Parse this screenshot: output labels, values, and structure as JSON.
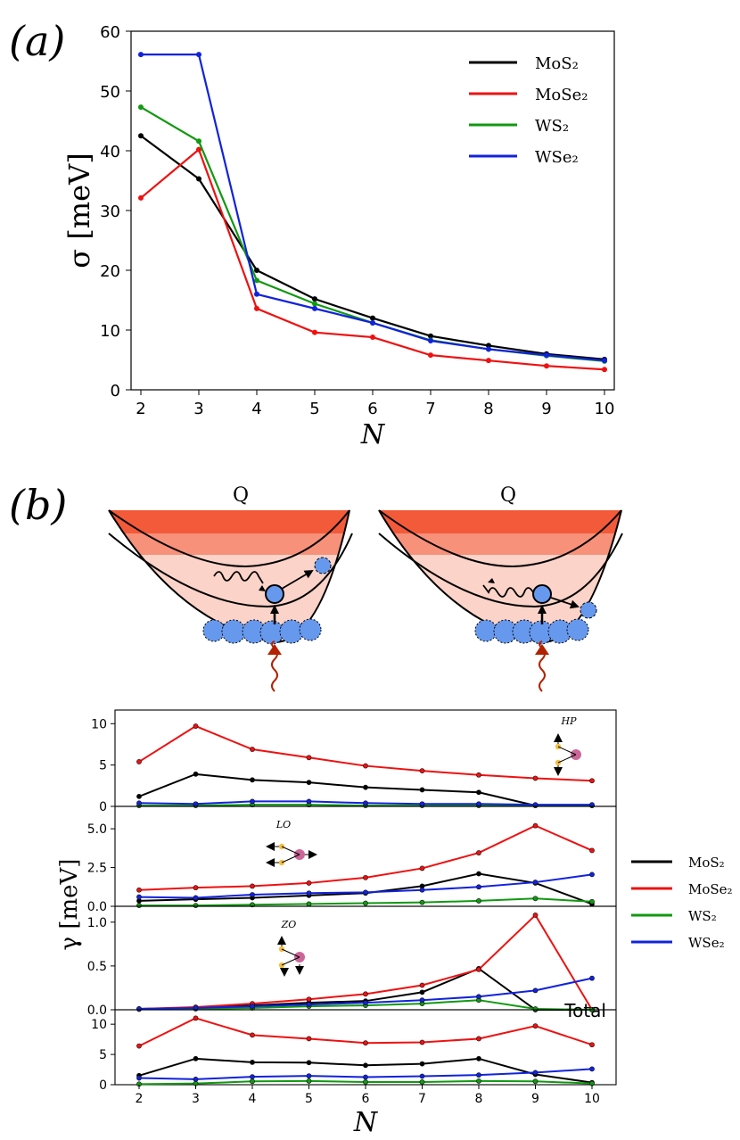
{
  "panel_labels": {
    "a": "(a)",
    "b": "(b)"
  },
  "colors": {
    "MoS2": "#000000",
    "MoSe2": "#ee1111",
    "WS2": "#119911",
    "WSe2": "#1122dd"
  },
  "diagram": {
    "left_title": "Q",
    "right_title": "Q"
  },
  "chart_data": [
    {
      "id": "a",
      "type": "line",
      "title": "",
      "xlabel": "N",
      "ylabel": "σ [meV]",
      "xlim": [
        2,
        10
      ],
      "ylim": [
        0,
        60
      ],
      "xticks": [
        "2",
        "3",
        "4",
        "5",
        "6",
        "7",
        "8",
        "9",
        "10"
      ],
      "yticks": [
        "0",
        "10",
        "20",
        "30",
        "40",
        "50",
        "60"
      ],
      "legend_position": "top-right",
      "x": [
        2,
        3,
        4,
        5,
        6,
        7,
        8,
        9,
        10
      ],
      "series": [
        {
          "name": "MoS₂",
          "key": "MoS2",
          "values": [
            42.5,
            35.3,
            20.0,
            15.2,
            12.0,
            9.0,
            7.4,
            6.0,
            5.1
          ]
        },
        {
          "name": "MoSe₂",
          "key": "MoSe2",
          "values": [
            32.1,
            40.2,
            13.6,
            9.6,
            8.8,
            5.8,
            4.9,
            4.0,
            3.4
          ]
        },
        {
          "name": "WS₂",
          "key": "WS2",
          "values": [
            47.3,
            41.6,
            18.3,
            14.4,
            11.2,
            8.3,
            6.8,
            5.7,
            4.8
          ]
        },
        {
          "name": "WSe₂",
          "key": "WSe2",
          "values": [
            56.1,
            56.1,
            16.0,
            13.6,
            11.2,
            8.2,
            6.8,
            5.8,
            4.9
          ]
        }
      ]
    },
    {
      "id": "b-hp",
      "type": "line",
      "annotation": "HP",
      "xlim": [
        2,
        10
      ],
      "ylim": [
        0,
        11
      ],
      "yticks": [
        "0",
        "5",
        "10"
      ],
      "ytick_values": [
        0,
        5,
        10
      ],
      "x": [
        2,
        3,
        4,
        5,
        6,
        7,
        8,
        9,
        10
      ],
      "series": [
        {
          "key": "MoS2",
          "values": [
            1.2,
            3.9,
            3.2,
            2.9,
            2.3,
            2.0,
            1.7,
            0.1,
            0.1
          ]
        },
        {
          "key": "MoSe2",
          "values": [
            5.4,
            9.7,
            6.9,
            5.9,
            4.9,
            4.3,
            3.8,
            3.4,
            3.1
          ]
        },
        {
          "key": "WS2",
          "values": [
            0.1,
            0.1,
            0.2,
            0.2,
            0.1,
            0.1,
            0.1,
            0.1,
            0.1
          ]
        },
        {
          "key": "WSe2",
          "values": [
            0.4,
            0.3,
            0.6,
            0.6,
            0.4,
            0.3,
            0.3,
            0.2,
            0.2
          ]
        }
      ]
    },
    {
      "id": "b-lo",
      "type": "line",
      "annotation": "LO",
      "xlim": [
        2,
        10
      ],
      "ylim": [
        0,
        6.1
      ],
      "yticks": [
        "0.0",
        "2.5",
        "5.0"
      ],
      "ytick_values": [
        0,
        2.5,
        5.0
      ],
      "x": [
        2,
        3,
        4,
        5,
        6,
        7,
        8,
        9,
        10
      ],
      "series": [
        {
          "key": "MoS2",
          "values": [
            0.35,
            0.45,
            0.55,
            0.7,
            0.85,
            1.3,
            2.1,
            1.5,
            0.15
          ]
        },
        {
          "key": "MoSe2",
          "values": [
            1.05,
            1.2,
            1.3,
            1.5,
            1.85,
            2.45,
            3.45,
            5.2,
            3.6
          ]
        },
        {
          "key": "WS2",
          "values": [
            0.05,
            0.05,
            0.1,
            0.15,
            0.2,
            0.25,
            0.35,
            0.5,
            0.3
          ]
        },
        {
          "key": "WSe2",
          "values": [
            0.6,
            0.55,
            0.75,
            0.85,
            0.9,
            1.05,
            1.25,
            1.55,
            2.05
          ]
        }
      ]
    },
    {
      "id": "b-zo",
      "type": "line",
      "annotation": "ZO",
      "ylabel": "γ [meV]",
      "xlim": [
        2,
        10
      ],
      "ylim": [
        0,
        1.12
      ],
      "yticks": [
        "0.0",
        "0.5",
        "1.0"
      ],
      "ytick_values": [
        0,
        0.5,
        1.0
      ],
      "x": [
        2,
        3,
        4,
        5,
        6,
        7,
        8,
        9,
        10
      ],
      "series": [
        {
          "key": "MoS2",
          "values": [
            0.01,
            0.02,
            0.05,
            0.08,
            0.1,
            0.2,
            0.47,
            0.0,
            0.0
          ]
        },
        {
          "key": "MoSe2",
          "values": [
            0.01,
            0.03,
            0.07,
            0.12,
            0.18,
            0.28,
            0.46,
            1.08,
            0.0
          ]
        },
        {
          "key": "WS2",
          "values": [
            0.005,
            0.01,
            0.02,
            0.04,
            0.05,
            0.07,
            0.11,
            0.01,
            0.0
          ]
        },
        {
          "key": "WSe2",
          "values": [
            0.01,
            0.02,
            0.04,
            0.06,
            0.08,
            0.11,
            0.15,
            0.22,
            0.36
          ]
        }
      ]
    },
    {
      "id": "b-total",
      "type": "line",
      "annotation": "Total",
      "xlabel": "N",
      "xlim": [
        2,
        10
      ],
      "ylim": [
        0,
        11.5
      ],
      "xticks": [
        "2",
        "3",
        "4",
        "5",
        "6",
        "7",
        "8",
        "9",
        "10"
      ],
      "yticks": [
        "0",
        "5",
        "10"
      ],
      "ytick_values": [
        0,
        5,
        10
      ],
      "x": [
        2,
        3,
        4,
        5,
        6,
        7,
        8,
        9,
        10
      ],
      "series": [
        {
          "key": "MoS2",
          "values": [
            1.5,
            4.3,
            3.7,
            3.65,
            3.2,
            3.45,
            4.3,
            1.7,
            0.35
          ]
        },
        {
          "key": "MoSe2",
          "values": [
            6.4,
            11.0,
            8.2,
            7.6,
            6.9,
            7.0,
            7.6,
            9.7,
            6.6
          ]
        },
        {
          "key": "WS2",
          "values": [
            0.1,
            0.2,
            0.55,
            0.6,
            0.45,
            0.45,
            0.6,
            0.55,
            0.2
          ]
        },
        {
          "key": "WSe2",
          "values": [
            1.1,
            0.9,
            1.3,
            1.45,
            1.25,
            1.4,
            1.6,
            2.0,
            2.6
          ]
        }
      ],
      "legend": [
        "MoS₂",
        "MoSe₂",
        "WS₂",
        "WSe₂"
      ],
      "legend_position": "right"
    }
  ]
}
